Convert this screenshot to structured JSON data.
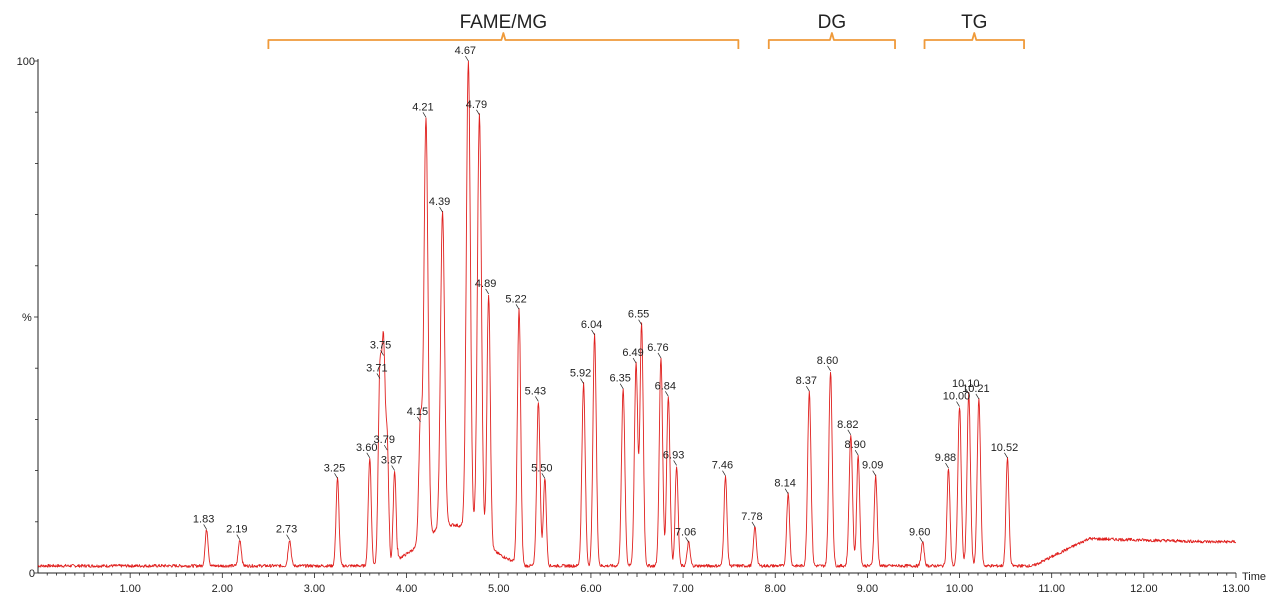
{
  "chart_data": {
    "type": "line",
    "xlabel": "Time",
    "ylabel": "%",
    "xlim": [
      0.0,
      13.0
    ],
    "ylim": [
      0,
      100
    ],
    "x_ticks": [
      "1.00",
      "2.00",
      "3.00",
      "4.00",
      "5.00",
      "6.00",
      "7.00",
      "8.00",
      "9.00",
      "10.00",
      "11.00",
      "12.00",
      "13.00"
    ],
    "y_ticks": [
      "0",
      "100"
    ],
    "grid": false,
    "colors": {
      "trace": "#e0211f",
      "bracket": "#ef9a3a",
      "axis": "#222222"
    },
    "groups": [
      {
        "label": "FAME/MG",
        "from": 2.5,
        "to": 7.6
      },
      {
        "label": "DG",
        "from": 7.93,
        "to": 9.3
      },
      {
        "label": "TG",
        "from": 9.62,
        "to": 10.7
      }
    ],
    "peaks": [
      {
        "label": "1.83",
        "x": 1.83,
        "y": 8.5
      },
      {
        "label": "2.19",
        "x": 2.19,
        "y": 6.5
      },
      {
        "label": "2.73",
        "x": 2.73,
        "y": 6.5
      },
      {
        "label": "3.25",
        "x": 3.25,
        "y": 18.5
      },
      {
        "label": "3.60",
        "x": 3.6,
        "y": 22.5
      },
      {
        "label": "3.71",
        "x": 3.71,
        "y": 38.0
      },
      {
        "label": "3.75",
        "x": 3.75,
        "y": 42.5
      },
      {
        "label": "3.79",
        "x": 3.79,
        "y": 24.0
      },
      {
        "label": "3.87",
        "x": 3.87,
        "y": 20.0
      },
      {
        "label": "4.15",
        "x": 4.15,
        "y": 29.5
      },
      {
        "label": "4.21",
        "x": 4.21,
        "y": 89.0
      },
      {
        "label": "4.39",
        "x": 4.39,
        "y": 70.5
      },
      {
        "label": "4.67",
        "x": 4.67,
        "y": 100.0
      },
      {
        "label": "4.79",
        "x": 4.79,
        "y": 89.5
      },
      {
        "label": "4.89",
        "x": 4.89,
        "y": 54.5
      },
      {
        "label": "5.22",
        "x": 5.22,
        "y": 51.5
      },
      {
        "label": "5.43",
        "x": 5.43,
        "y": 33.5
      },
      {
        "label": "5.50",
        "x": 5.5,
        "y": 18.5
      },
      {
        "label": "5.92",
        "x": 5.92,
        "y": 37.0
      },
      {
        "label": "6.04",
        "x": 6.04,
        "y": 46.5
      },
      {
        "label": "6.35",
        "x": 6.35,
        "y": 36.0
      },
      {
        "label": "6.49",
        "x": 6.49,
        "y": 41.0
      },
      {
        "label": "6.55",
        "x": 6.55,
        "y": 48.5
      },
      {
        "label": "6.76",
        "x": 6.76,
        "y": 42.0
      },
      {
        "label": "6.84",
        "x": 6.84,
        "y": 34.5
      },
      {
        "label": "6.93",
        "x": 6.93,
        "y": 21.0
      },
      {
        "label": "7.06",
        "x": 7.06,
        "y": 6.0
      },
      {
        "label": "7.46",
        "x": 7.46,
        "y": 19.0
      },
      {
        "label": "7.78",
        "x": 7.78,
        "y": 9.0
      },
      {
        "label": "8.14",
        "x": 8.14,
        "y": 15.5
      },
      {
        "label": "8.37",
        "x": 8.37,
        "y": 35.5
      },
      {
        "label": "8.60",
        "x": 8.6,
        "y": 39.5
      },
      {
        "label": "8.82",
        "x": 8.82,
        "y": 27.0
      },
      {
        "label": "8.90",
        "x": 8.9,
        "y": 23.0
      },
      {
        "label": "9.09",
        "x": 9.09,
        "y": 19.0
      },
      {
        "label": "9.60",
        "x": 9.6,
        "y": 6.0
      },
      {
        "label": "9.88",
        "x": 9.88,
        "y": 20.5
      },
      {
        "label": "10.00",
        "x": 10.0,
        "y": 32.5
      },
      {
        "label": "10.10",
        "x": 10.1,
        "y": 35.0
      },
      {
        "label": "10.21",
        "x": 10.21,
        "y": 34.0
      },
      {
        "label": "10.52",
        "x": 10.52,
        "y": 22.5
      }
    ]
  }
}
